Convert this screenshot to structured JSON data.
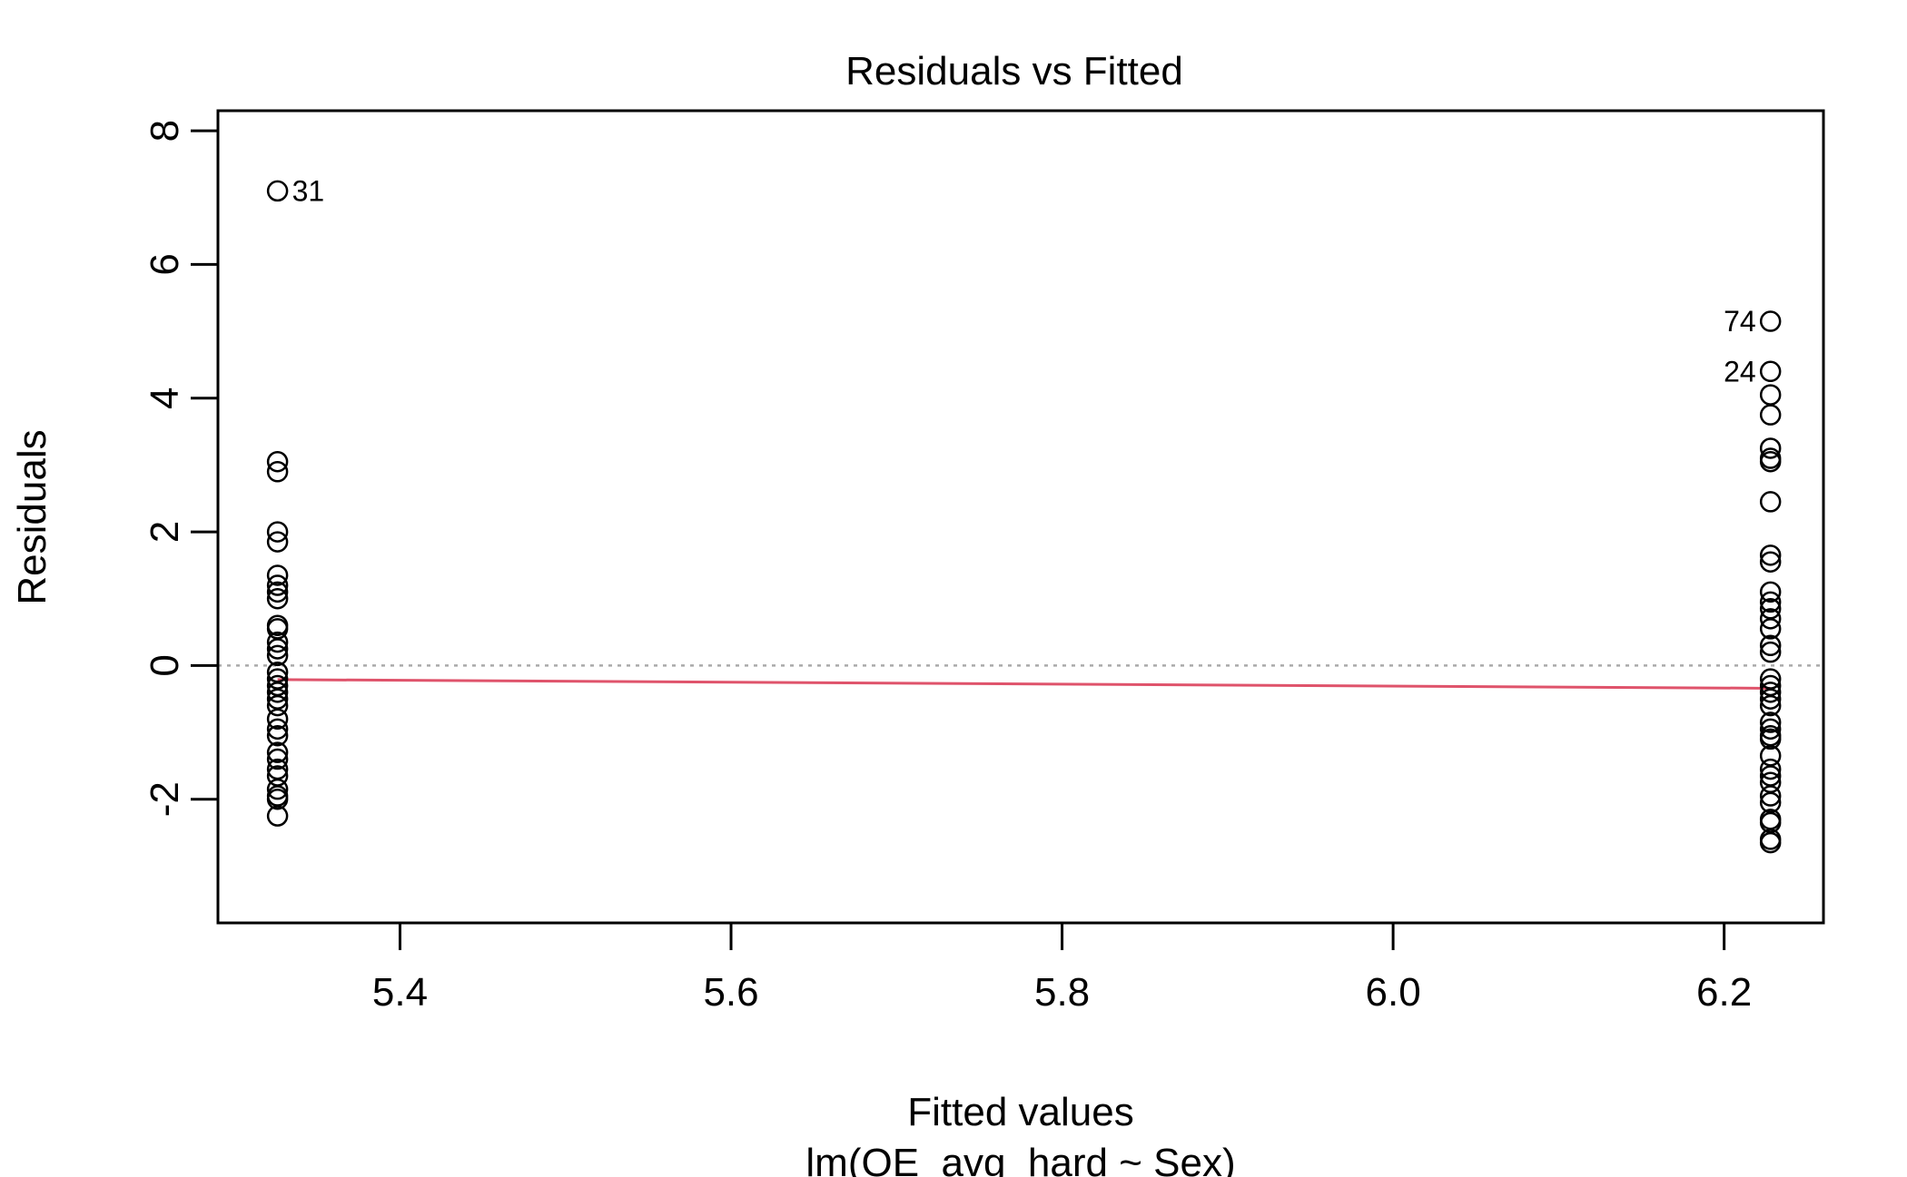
{
  "chart_data": {
    "type": "scatter",
    "title": "Residuals vs Fitted",
    "xlabel": "Fitted values",
    "subtitle": "lm(OE_avg_hard ~ Sex)",
    "ylabel": "Residuals",
    "xlim": [
      5.29,
      6.26
    ],
    "ylim": [
      -3.85,
      8.3
    ],
    "xticks": [
      5.4,
      5.6,
      5.8,
      6.0,
      6.2
    ],
    "xtick_labels": [
      "5.4",
      "5.6",
      "5.8",
      "6.0",
      "6.2"
    ],
    "yticks": [
      -2,
      0,
      2,
      4,
      6,
      8
    ],
    "ytick_labels": [
      "-2",
      "0",
      "2",
      "4",
      "6",
      "8"
    ],
    "zero_line": {
      "y": 0,
      "style": "dotted",
      "color": "#aaaaaa"
    },
    "smoother": {
      "x": [
        5.326,
        6.228
      ],
      "y": [
        -0.21,
        -0.34
      ],
      "color": "#df536b"
    },
    "points": [
      {
        "x": 5.326,
        "y": 7.1
      },
      {
        "x": 5.326,
        "y": 3.05
      },
      {
        "x": 5.326,
        "y": 2.9
      },
      {
        "x": 5.326,
        "y": 2.0
      },
      {
        "x": 5.326,
        "y": 1.85
      },
      {
        "x": 5.326,
        "y": 1.35
      },
      {
        "x": 5.326,
        "y": 1.2
      },
      {
        "x": 5.326,
        "y": 1.1
      },
      {
        "x": 5.326,
        "y": 1.0
      },
      {
        "x": 5.326,
        "y": 0.6
      },
      {
        "x": 5.326,
        "y": 0.55
      },
      {
        "x": 5.326,
        "y": 0.35
      },
      {
        "x": 5.326,
        "y": 0.25
      },
      {
        "x": 5.326,
        "y": 0.15
      },
      {
        "x": 5.326,
        "y": -0.1
      },
      {
        "x": 5.326,
        "y": -0.2
      },
      {
        "x": 5.326,
        "y": -0.3
      },
      {
        "x": 5.326,
        "y": -0.4
      },
      {
        "x": 5.326,
        "y": -0.5
      },
      {
        "x": 5.326,
        "y": -0.6
      },
      {
        "x": 5.326,
        "y": -0.8
      },
      {
        "x": 5.326,
        "y": -0.95
      },
      {
        "x": 5.326,
        "y": -1.05
      },
      {
        "x": 5.326,
        "y": -1.3
      },
      {
        "x": 5.326,
        "y": -1.4
      },
      {
        "x": 5.326,
        "y": -1.55
      },
      {
        "x": 5.326,
        "y": -1.65
      },
      {
        "x": 5.326,
        "y": -1.85
      },
      {
        "x": 5.326,
        "y": -1.95
      },
      {
        "x": 5.326,
        "y": -2.0
      },
      {
        "x": 5.326,
        "y": -2.25
      },
      {
        "x": 6.228,
        "y": 5.15
      },
      {
        "x": 6.228,
        "y": 4.4
      },
      {
        "x": 6.228,
        "y": 4.05
      },
      {
        "x": 6.228,
        "y": 3.75
      },
      {
        "x": 6.228,
        "y": 3.25
      },
      {
        "x": 6.228,
        "y": 3.1
      },
      {
        "x": 6.228,
        "y": 3.05
      },
      {
        "x": 6.228,
        "y": 2.45
      },
      {
        "x": 6.228,
        "y": 1.65
      },
      {
        "x": 6.228,
        "y": 1.55
      },
      {
        "x": 6.228,
        "y": 1.1
      },
      {
        "x": 6.228,
        "y": 0.95
      },
      {
        "x": 6.228,
        "y": 0.85
      },
      {
        "x": 6.228,
        "y": 0.7
      },
      {
        "x": 6.228,
        "y": 0.55
      },
      {
        "x": 6.228,
        "y": 0.3
      },
      {
        "x": 6.228,
        "y": 0.2
      },
      {
        "x": 6.228,
        "y": -0.2
      },
      {
        "x": 6.228,
        "y": -0.3
      },
      {
        "x": 6.228,
        "y": -0.4
      },
      {
        "x": 6.228,
        "y": -0.5
      },
      {
        "x": 6.228,
        "y": -0.6
      },
      {
        "x": 6.228,
        "y": -0.85
      },
      {
        "x": 6.228,
        "y": -0.95
      },
      {
        "x": 6.228,
        "y": -1.05
      },
      {
        "x": 6.228,
        "y": -1.1
      },
      {
        "x": 6.228,
        "y": -1.35
      },
      {
        "x": 6.228,
        "y": -1.55
      },
      {
        "x": 6.228,
        "y": -1.65
      },
      {
        "x": 6.228,
        "y": -1.75
      },
      {
        "x": 6.228,
        "y": -1.95
      },
      {
        "x": 6.228,
        "y": -2.05
      },
      {
        "x": 6.228,
        "y": -2.3
      },
      {
        "x": 6.228,
        "y": -2.35
      },
      {
        "x": 6.228,
        "y": -2.6
      },
      {
        "x": 6.228,
        "y": -2.65
      }
    ],
    "point_labels": [
      {
        "label": "31",
        "x": 5.326,
        "y": 7.1,
        "side": "right"
      },
      {
        "label": "74",
        "x": 6.228,
        "y": 5.15,
        "side": "left"
      },
      {
        "label": "24",
        "x": 6.228,
        "y": 4.4,
        "side": "left"
      }
    ]
  }
}
